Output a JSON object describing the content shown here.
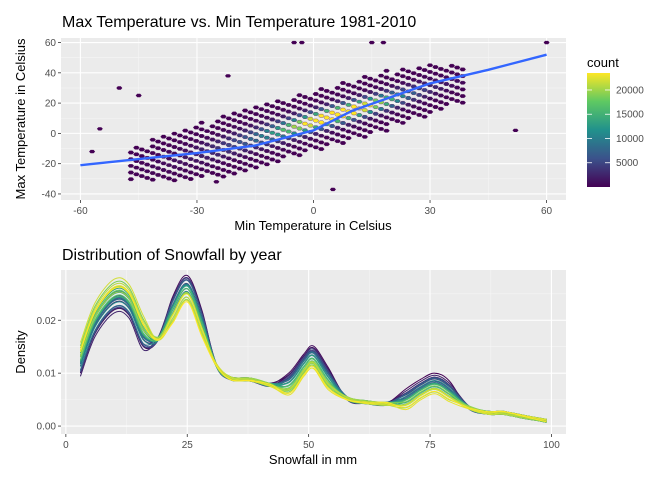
{
  "chart_data": [
    {
      "type": "hexbin",
      "title": "Max Temperature vs. Min Temperature 1981-2010",
      "xlabel": "Min Temperature in Celsius",
      "ylabel": "Max Temperature in Celsius",
      "xlim": [
        -65,
        65
      ],
      "ylim": [
        -44,
        63
      ],
      "x_ticks": [
        -60,
        -30,
        0,
        30,
        60
      ],
      "y_ticks": [
        -40,
        -20,
        0,
        20,
        40,
        60
      ],
      "grid": true,
      "legend": {
        "title": "count",
        "placement": "right",
        "ticks": [
          5000,
          10000,
          15000,
          20000
        ],
        "range": [
          1,
          23500
        ],
        "colors": [
          "#440154",
          "#3b528b",
          "#21918c",
          "#5ec962",
          "#fde725"
        ]
      },
      "smooth_line": {
        "color": "#3366ff",
        "x": [
          -60,
          -45,
          -30,
          -15,
          0,
          10,
          20,
          30,
          45,
          60
        ],
        "y": [
          -21,
          -17,
          -13,
          -8,
          2,
          15,
          24,
          33,
          42,
          52
        ]
      },
      "outliers": [
        [
          -57,
          -12
        ],
        [
          -50,
          30
        ],
        [
          -45,
          25
        ],
        [
          -22,
          38
        ],
        [
          -5,
          60
        ],
        [
          -3,
          60
        ],
        [
          15,
          60
        ],
        [
          18,
          60
        ],
        [
          -55,
          3
        ],
        [
          52,
          2
        ],
        [
          60,
          60
        ],
        [
          -25,
          -32
        ],
        [
          5,
          -37
        ]
      ]
    },
    {
      "type": "density",
      "title": "Distribution of Snowfall by year",
      "xlabel": "Snowfall in mm",
      "ylabel": "Density",
      "xlim": [
        -1,
        103
      ],
      "ylim": [
        -0.0015,
        0.0295
      ],
      "x_ticks": [
        0,
        25,
        50,
        75,
        100
      ],
      "y_ticks": [
        0.0,
        0.01,
        0.02
      ],
      "y_tick_labels": [
        "0.00",
        "0.01",
        "0.02"
      ],
      "grid": true,
      "series_count": 30,
      "colors_viridis": true,
      "x": [
        3,
        6,
        10,
        13,
        16,
        19,
        22,
        25,
        28,
        31,
        34,
        38,
        42,
        46,
        49,
        51,
        54,
        58,
        62,
        66,
        70,
        73,
        76,
        79,
        83,
        87,
        90,
        94,
        99
      ],
      "mean_curve": [
        0.0125,
        0.02,
        0.0245,
        0.0235,
        0.0175,
        0.0165,
        0.022,
        0.026,
        0.0195,
        0.0115,
        0.009,
        0.0088,
        0.0078,
        0.008,
        0.0115,
        0.013,
        0.009,
        0.0052,
        0.0045,
        0.0042,
        0.005,
        0.0068,
        0.008,
        0.0065,
        0.0035,
        0.0025,
        0.0025,
        0.0018,
        0.001
      ]
    }
  ]
}
